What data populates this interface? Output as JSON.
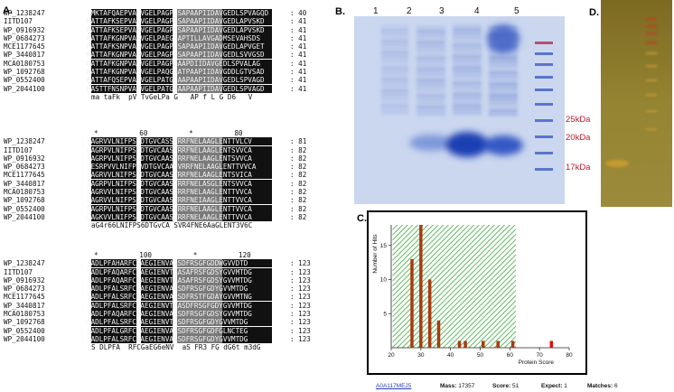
{
  "panels": {
    "a": "A.",
    "b": "B.",
    "c": "C.",
    "d": "D."
  },
  "alignment": {
    "names": [
      "WP_1238247",
      "IITD107",
      "WP_0916932",
      "WP_0684273",
      "MCE1177645",
      "WP_3440817",
      "MCA0180753",
      "WP_1092768",
      "WP_0552400",
      "WP_2044100"
    ],
    "blocks": [
      {
        "ruler": "",
        "rows": [
          {
            "seq": "~MKTAFQAEPVATVGELPAGPGSAPAAPIIDAVGEDLSPVAGQD",
            "num": ": 40"
          },
          {
            "seq": "MATTAFKSEPVATVGELPAGPGSAPAAPIIDAVGEDLAPVSKD",
            "num": ": 41"
          },
          {
            "seq": "MATTAFKSEPVATVGELPAGPGSAPAAPIIDAVGEDLAPVSKD",
            "num": ": 41"
          },
          {
            "seq": "MATTAFKGNPVATVGELPAEGSAPTILLAVGADMSEVAHSDS",
            "num": ": 41"
          },
          {
            "seq": "MATTAFKSNPVATVGELPAGPGSAPAAPIIDAVGEDLAPVGET",
            "num": ": 41"
          },
          {
            "seq": "MATTAFKGNPVATVGELPAGPGSAPAAPIIDAVGEDLSVVGSD",
            "num": ": 41"
          },
          {
            "seq": "MATTAFKGNPVATVGELPAGPGAAPDIIDAVGEDLSPVALAG",
            "num": ": 41"
          },
          {
            "seq": "MATTAFKGNPVATVGELPAQGAATPAAPIIDAVGDDLGTVSAD",
            "num": ": 41"
          },
          {
            "seq": "MATTAFQSEPVATVGELPATGPAAPAAPIIDAVGEDLSPVAGD",
            "num": ": 41"
          },
          {
            "seq": "MASTTFNSNPVATVGELPATGSAAPAAPIIDAVGEDLSPVAGD",
            "num": ": 41"
          }
        ],
        "consensus": "ma taFk  pV TvGeLPa G   AP f L G D6   V"
      },
      {
        "ruler": "*          60          *          80",
        "rows": [
          {
            "seq": "LAGRVVLNIFPSLDTGVCASSVRRFNELAAGLENTTVLCV",
            "num": ": 81"
          },
          {
            "seq": "LAGRPVLNIFPSLDTGVCAASVRRFNELAAGLENTSVVCA",
            "num": ": 82"
          },
          {
            "seq": "LAGRPVLNIFPSLDTGVCAASVRRFNELAAGLENTSVVCA",
            "num": ": 82"
          },
          {
            "seq": "LESRPVVLNIFPSVDTGVCAASVRRFNELAAGLENTTVVCA",
            "num": ": 82"
          },
          {
            "seq": "LAGRVVLNIFPSVDTGVCAASVRRFNELAAGLENTSVICA",
            "num": ": 82"
          },
          {
            "seq": "LAGRPVLNIFPSVDTGVCAASVRRFNELASGLENTSVVCA",
            "num": ": 82"
          },
          {
            "seq": "LAGRVVLNIFPSVDTGVCAASVRRFNELAAGLENTTVVCA",
            "num": ": 82"
          },
          {
            "seq": "LAGRVVLNIFPSLDTGVCAASVRRFNEIAAGLENTTVVCA",
            "num": ": 82"
          },
          {
            "seq": "FAGRPVLNIFPSVDTGVCAASVRRFNELAAGLENTTVVCA",
            "num": ": 82"
          },
          {
            "seq": "LAGKVVLNIFPSVDTGVCAASVRRFNELAAGLENTTVVCA",
            "num": ": 82"
          }
        ],
        "consensus": "aG4r66LNIFPS6DTGvCA SVR4FNE6AaGLENT3V6C"
      },
      {
        "ruler": "*          100          *          120",
        "rows": [
          {
            "seq": "SADLPFAHARFCGAEGIENVAASDFRSGFGDDWGVVDTD",
            "num": ": 123"
          },
          {
            "seq": "SADLPFAQARFCGAEGIENVTAASAFRSFGDSYGVVMTDG",
            "num": ": 123"
          },
          {
            "seq": "SADLPFAQARFCGAEGIENVTAASAFRSFGDSYGVVMTDG",
            "num": ": 123"
          },
          {
            "seq": "SADLPFALSRFCGAEGIENVAASDFRSGFGDYGVVMTDG",
            "num": ": 123"
          },
          {
            "seq": "SADLPFALSRFCGAEGIENVAASDFRSTFGDAYGVVMTNG",
            "num": ": 123"
          },
          {
            "seq": "SADLPFALSRFCGAEGIENVTAASDFRSGFGDYGVVMTDG",
            "num": ": 123"
          },
          {
            "seq": "SADLPFAQARFCGAEGIENVAASDFRSGFGDSYGVVMTDG",
            "num": ": 123"
          },
          {
            "seq": "SADLPFALSRFCGAEGIENVTGSDFRSGFGDYGVVMTDG",
            "num": ": 123"
          },
          {
            "seq": "SADLPFALGRFCGAEGIENVAASDFRSGFGDFGLNCTEG",
            "num": ": 123"
          },
          {
            "seq": "SADLPFALSRFCGAEGIENVAASDFRSGFGDYGVVMTDG",
            "num": ": 123"
          }
        ],
        "consensus": "S DLPFA  RFCGaEG6eNV  aS FR3 FG dG6t m3dG"
      }
    ]
  },
  "gel": {
    "lanes": [
      "1",
      "2",
      "3",
      "4",
      "5"
    ],
    "markers": [
      "25kDa",
      "20kDa",
      "17kDa"
    ]
  },
  "chart_data": {
    "type": "bar",
    "xlabel": "Protein Score",
    "ylabel": "Number of Hits",
    "xlim": [
      20,
      80
    ],
    "ylim": [
      0,
      18
    ],
    "xticks": [
      20,
      30,
      40,
      50,
      60,
      70,
      80
    ],
    "yticks": [
      5,
      10,
      15
    ],
    "significance_threshold": 62,
    "x": [
      27,
      30,
      33,
      36,
      43,
      45,
      51,
      56,
      61,
      74
    ],
    "values": [
      13,
      18,
      10,
      4,
      1,
      1,
      1,
      1,
      1,
      1
    ],
    "highlight_x": 74,
    "colors": {
      "bars": "#a93a10",
      "highlight": "#e01010",
      "shade": "#3aa83a"
    }
  },
  "footer": {
    "accession": "A0A117MEJ5",
    "mass_label": "Mass:",
    "mass": "17357",
    "score_label": "Score:",
    "score": "51",
    "expect_label": "Expect:",
    "expect": "1",
    "matches_label": "Matches:",
    "matches": "6"
  }
}
